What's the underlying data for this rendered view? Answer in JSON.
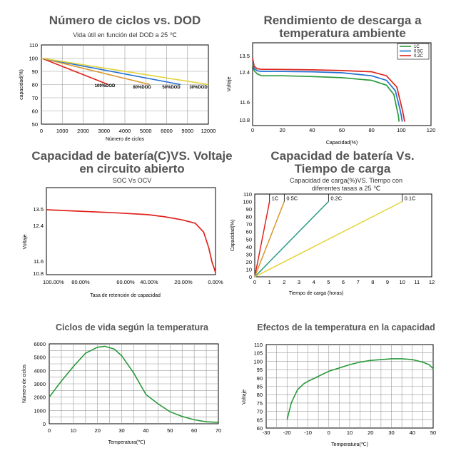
{
  "colors": {
    "red": "#e0231c",
    "green": "#2a9a3a",
    "blue": "#1f6fd1",
    "yellow": "#e3d33a",
    "orange": "#d9962a",
    "teal": "#2a9a86",
    "frame": "#000000",
    "grid": "#9a9a9a"
  },
  "chart_data": [
    {
      "id": "cycles_vs_dod",
      "type": "line",
      "title": "Número de ciclos vs. DOD",
      "subtitle": "Vida útil en función del DOD a 25 ℃",
      "xlabel": "Número de ciclos",
      "ylabel": "capacidad(%)",
      "xlim": [
        0,
        12000
      ],
      "ylim": [
        50,
        110
      ],
      "x_tick_labels": [
        "0",
        "1000",
        "2000",
        "3000",
        "4000",
        "5000",
        "6000",
        "9000",
        "12000"
      ],
      "y_ticks": [
        50,
        60,
        70,
        80,
        90,
        100,
        110
      ],
      "grid": true,
      "series": [
        {
          "name": "100%DOD",
          "color": "red",
          "points": [
            [
              0,
              100
            ],
            [
              3200,
              80
            ]
          ]
        },
        {
          "name": "80%DOD",
          "color": "orange",
          "points": [
            [
              0,
              100
            ],
            [
              5200,
              80
            ]
          ]
        },
        {
          "name": "50%DOD",
          "color": "blue",
          "points": [
            [
              0,
              100
            ],
            [
              8000,
              80
            ]
          ]
        },
        {
          "name": "30%DOD",
          "color": "yellow",
          "points": [
            [
              0,
              100
            ],
            [
              12000,
              80
            ]
          ]
        }
      ],
      "annotations": [
        "100%DOD",
        "80%DOD",
        "50%DOD",
        "30%DOD"
      ]
    },
    {
      "id": "discharge_room_temp",
      "type": "line",
      "title": "Rendimiento de descarga a temperatura ambiente",
      "xlabel": "Capacidad(%)",
      "ylabel": "Voltaje",
      "xlim": [
        0,
        120
      ],
      "ylim": [
        10.6,
        13.8
      ],
      "x_ticks": [
        0,
        20,
        40,
        60,
        80,
        100,
        120
      ],
      "y_tick_labels": [
        "10.8",
        "11.6",
        "12.4",
        "13.5"
      ],
      "grid": false,
      "legend": "top-right",
      "series": [
        {
          "name": "1C",
          "color": "green",
          "x": [
            0,
            1,
            3,
            6,
            10,
            20,
            40,
            60,
            80,
            90,
            95,
            97,
            98,
            98.5
          ],
          "y": [
            12.95,
            12.5,
            12.35,
            12.3,
            12.3,
            12.3,
            12.28,
            12.25,
            12.18,
            12.05,
            11.8,
            11.3,
            11.0,
            10.7
          ]
        },
        {
          "name": "0.5C",
          "color": "blue",
          "x": [
            0,
            1,
            3,
            6,
            10,
            20,
            40,
            60,
            80,
            90,
            96,
            99,
            100,
            100.6
          ],
          "y": [
            13.15,
            12.65,
            12.48,
            12.45,
            12.45,
            12.44,
            12.42,
            12.38,
            12.3,
            12.18,
            11.9,
            11.3,
            11.0,
            10.7
          ]
        },
        {
          "name": "0.2C",
          "color": "red",
          "x": [
            0,
            1,
            3,
            6,
            10,
            20,
            40,
            60,
            80,
            90,
            97,
            100.5,
            101.5,
            102.2
          ],
          "y": [
            13.35,
            12.8,
            12.62,
            12.58,
            12.58,
            12.57,
            12.55,
            12.5,
            12.42,
            12.3,
            12.0,
            11.3,
            11.0,
            10.7
          ]
        }
      ]
    },
    {
      "id": "soc_vs_ocv",
      "type": "line",
      "title": "Capacidad de batería(C)VS. Voltaje en circuito abierto",
      "subtitle": "SOC Vs OCV",
      "xlabel": "Tasa de retención de capacidad",
      "ylabel": "Voltaje",
      "x_tick_labels": [
        "100.00%",
        "80.00%",
        "60.00%",
        "40.00%",
        "20.00%",
        "0.00%"
      ],
      "xlim": [
        100,
        0
      ],
      "ylim": [
        10.7,
        14.0
      ],
      "y_tick_labels": [
        "10.8",
        "11.6",
        "12.4",
        "13.5"
      ],
      "grid": false,
      "series": [
        {
          "color": "red",
          "x": [
            100,
            80,
            60,
            40,
            30,
            20,
            12,
            7,
            4,
            2,
            1,
            0.3,
            0
          ],
          "y": [
            13.45,
            13.35,
            13.25,
            13.12,
            12.98,
            12.78,
            12.55,
            12.25,
            11.9,
            11.5,
            11.2,
            10.95,
            10.8
          ]
        }
      ]
    },
    {
      "id": "charge_time",
      "type": "line",
      "title": "Capacidad de batería Vs. Tiempo de carga",
      "subtitle": "Capacidad de carga(%)VS. Tiempo con diferentes tasas a 25 ℃",
      "xlabel": "Tiempo de carga (horas)",
      "ylabel": "Capacidad(%)",
      "xlim": [
        0,
        12
      ],
      "ylim": [
        0,
        110
      ],
      "x_ticks": [
        0,
        1,
        2,
        3,
        4,
        5,
        6,
        7,
        8,
        9,
        10,
        11,
        12
      ],
      "y_ticks": [
        0,
        10,
        20,
        30,
        40,
        50,
        60,
        70,
        80,
        90,
        100,
        110
      ],
      "grid": false,
      "series": [
        {
          "name": "1C",
          "color": "red",
          "points": [
            [
              0,
              0
            ],
            [
              1,
              100
            ]
          ]
        },
        {
          "name": "0.5C",
          "color": "orange",
          "points": [
            [
              0,
              0
            ],
            [
              2,
              100
            ]
          ]
        },
        {
          "name": "0.2C",
          "color": "teal",
          "points": [
            [
              0,
              0
            ],
            [
              5,
              100
            ]
          ]
        },
        {
          "name": "0.1C",
          "color": "yellow",
          "points": [
            [
              0,
              0
            ],
            [
              10,
              100
            ]
          ]
        }
      ]
    },
    {
      "id": "cycles_vs_temp",
      "type": "line",
      "title": "Ciclos de vida según la temperatura",
      "xlabel": "Temperatura(℃)",
      "ylabel": "Número de ciclos",
      "xlim": [
        0,
        70
      ],
      "ylim": [
        0,
        6000
      ],
      "x_ticks": [
        0,
        10,
        20,
        30,
        40,
        50,
        60,
        70
      ],
      "y_ticks": [
        0,
        1000,
        2000,
        3000,
        4000,
        5000,
        6000
      ],
      "grid": true,
      "series": [
        {
          "color": "green",
          "x": [
            0,
            5,
            10,
            15,
            20,
            23,
            27,
            30,
            35,
            40,
            45,
            50,
            55,
            60,
            65,
            70
          ],
          "y": [
            2000,
            3200,
            4300,
            5300,
            5750,
            5820,
            5600,
            5100,
            3800,
            2200,
            1500,
            900,
            550,
            300,
            150,
            100
          ]
        }
      ]
    },
    {
      "id": "temp_vs_capacity",
      "type": "line",
      "title": "Efectos de la temperatura en la capacidad",
      "xlabel": "Temperatura(℃)",
      "ylabel": "Voltaje",
      "xlim": [
        -30,
        50
      ],
      "ylim": [
        60,
        110
      ],
      "x_ticks": [
        -30,
        -20,
        -10,
        0,
        10,
        20,
        30,
        40,
        50
      ],
      "y_ticks": [
        60,
        65,
        70,
        75,
        80,
        85,
        90,
        95,
        100,
        105,
        110
      ],
      "grid": true,
      "series": [
        {
          "color": "green",
          "x": [
            -20,
            -18,
            -15,
            -12,
            -10,
            -5,
            0,
            5,
            10,
            15,
            20,
            25,
            30,
            35,
            40,
            45,
            48,
            50
          ],
          "y": [
            65,
            75,
            83,
            86.5,
            88,
            91,
            94,
            96,
            98,
            99.5,
            100.5,
            101,
            101.5,
            101.5,
            101,
            99.5,
            98,
            95.5
          ]
        }
      ]
    }
  ]
}
